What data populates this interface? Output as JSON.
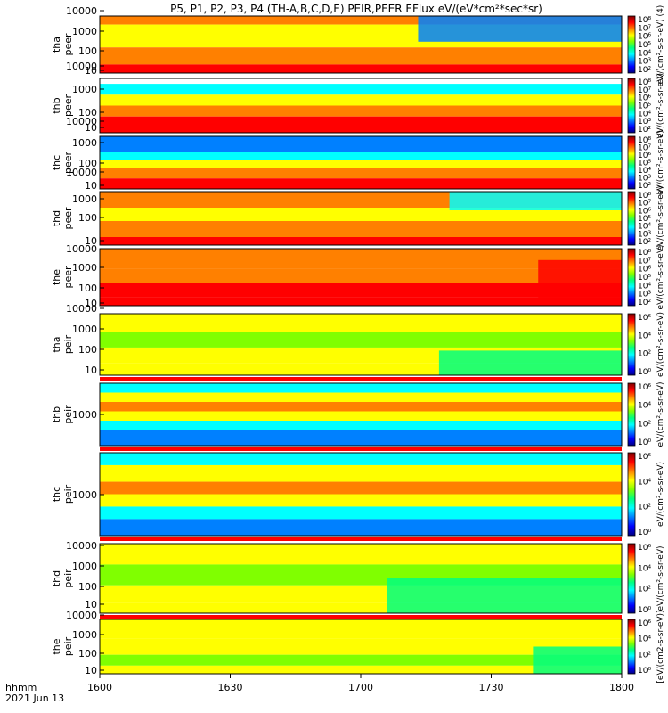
{
  "title": "P5, P1, P2, P3, P4 (TH-A,B,C,D,E) PEIR,PEER EFlux eV/(eV*cm²*sec*sr)",
  "footer": {
    "time_label": "hhmm",
    "date_label": "2021 Jun 13"
  },
  "x_ticks": [
    "1600",
    "1630",
    "1700",
    "1730",
    "1800"
  ],
  "colors": {
    "colormap": [
      "#00007f",
      "#0000ff",
      "#0080ff",
      "#00ffff",
      "#00ff80",
      "#80ff00",
      "#ffff00",
      "#ff8000",
      "#ff0000",
      "#7f0000"
    ],
    "saturated_band": "#ff0000"
  },
  "chart_data": [
    {
      "type": "heatmap",
      "panel": "tha peer",
      "ylabel_line1": "tha",
      "ylabel_line2": "peer",
      "y_scale": "log",
      "y_ticks": [
        "10",
        "100",
        "1000",
        "10000"
      ],
      "colorbar_ticks": [
        "10²",
        "10³",
        "10⁴",
        "10⁵",
        "10⁶",
        "10⁷",
        "10⁸"
      ],
      "colorbar_label": "eV/(cm²-s-sr-eV) (4)"
    },
    {
      "type": "heatmap",
      "panel": "thb peer",
      "ylabel_line1": "thb",
      "ylabel_line2": "peer",
      "y_scale": "log",
      "y_ticks": [
        "10",
        "100",
        "1000",
        "10000"
      ],
      "colorbar_ticks": [
        "10²",
        "10³",
        "10⁴",
        "10⁵",
        "10⁶",
        "10⁷",
        "10⁸"
      ],
      "colorbar_label": "eV/(cm²-s-sr-eV)"
    },
    {
      "type": "heatmap",
      "panel": "thc peer",
      "ylabel_line1": "thc",
      "ylabel_line2": "peer",
      "y_scale": "log",
      "y_ticks": [
        "10",
        "100",
        "1000",
        "10000"
      ],
      "colorbar_ticks": [
        "10²",
        "10³",
        "10⁴",
        "10⁵",
        "10⁶",
        "10⁷",
        "10⁸"
      ],
      "colorbar_label": "eV/(cm²-s-sr-eV)"
    },
    {
      "type": "heatmap",
      "panel": "thd peer",
      "ylabel_line1": "thd",
      "ylabel_line2": "peer",
      "y_scale": "log",
      "y_ticks": [
        "10",
        "100",
        "1000",
        "10000"
      ],
      "colorbar_ticks": [
        "10²",
        "10³",
        "10⁴",
        "10⁵",
        "10⁶",
        "10⁷",
        "10⁸"
      ],
      "colorbar_label": "eV/(cm²-s-sr-eV)"
    },
    {
      "type": "heatmap",
      "panel": "the peer",
      "ylabel_line1": "the",
      "ylabel_line2": "peer",
      "y_scale": "log",
      "y_ticks": [
        "10",
        "100",
        "1000",
        "10000"
      ],
      "colorbar_ticks": [
        "10²",
        "10³",
        "10⁴",
        "10⁵",
        "10⁶",
        "10⁷",
        "10⁸"
      ],
      "colorbar_label": "eV/(cm²-s-sr-eV)"
    },
    {
      "type": "heatmap",
      "panel": "tha peir",
      "ylabel_line1": "tha",
      "ylabel_line2": "peir",
      "y_scale": "log",
      "y_ticks": [
        "10",
        "100",
        "1000",
        "10000"
      ],
      "colorbar_ticks": [
        "10⁰",
        "10²",
        "10⁴",
        "10⁶"
      ],
      "colorbar_label": "eV/(cm²-s-sr-eV)"
    },
    {
      "type": "heatmap",
      "panel": "thb peir",
      "ylabel_line1": "thb",
      "ylabel_line2": "peir",
      "y_scale": "log",
      "y_ticks": [
        "1000"
      ],
      "colorbar_ticks": [
        "10⁰",
        "10²",
        "10⁴",
        "10⁶"
      ],
      "colorbar_label": "eV/(cm²-s-sr-eV)"
    },
    {
      "type": "heatmap",
      "panel": "thc peir",
      "ylabel_line1": "thc",
      "ylabel_line2": "peir",
      "y_scale": "log",
      "y_ticks": [
        "1000"
      ],
      "colorbar_ticks": [
        "10⁰",
        "10²",
        "10⁴",
        "10⁶"
      ],
      "colorbar_label": "eV/(cm²-s-sr-eV)"
    },
    {
      "type": "heatmap",
      "panel": "thd peir",
      "ylabel_line1": "thd",
      "ylabel_line2": "peir",
      "y_scale": "log",
      "y_ticks": [
        "10",
        "100",
        "1000",
        "10000"
      ],
      "colorbar_ticks": [
        "10⁰",
        "10²",
        "10⁴",
        "10⁶"
      ],
      "colorbar_label": "eV/(cm²-s-sr-eV)"
    },
    {
      "type": "heatmap",
      "panel": "the peir",
      "ylabel_line1": "the",
      "ylabel_line2": "peir",
      "y_scale": "log",
      "y_ticks": [
        "10",
        "100",
        "1000",
        "10000"
      ],
      "colorbar_ticks": [
        "10⁰",
        "10²",
        "10⁴",
        "10⁶"
      ],
      "colorbar_label": "[eV/(cm2-s-sr-eV)]"
    }
  ]
}
